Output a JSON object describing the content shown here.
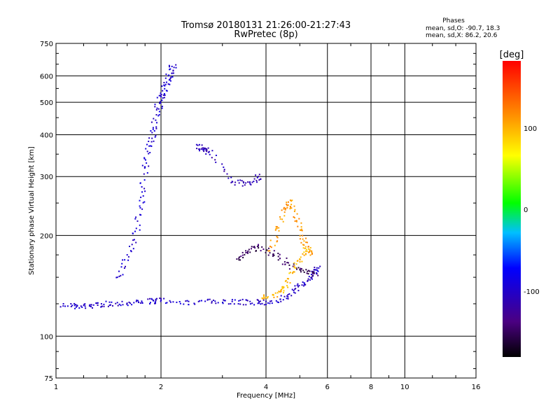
{
  "chart_data": {
    "type": "scatter",
    "title": "Tromsø 20180131 21:26:00-21:27:43",
    "subtitle": "RwPretec (8p)",
    "xlabel": "Frequency [MHz]",
    "ylabel": "Stationary phase Virtual Height [km]",
    "x_scale": "log",
    "y_scale": "log",
    "xlim": [
      1,
      16
    ],
    "ylim": [
      75,
      750
    ],
    "x_ticks": [
      "1",
      "2",
      "4",
      "6",
      "8",
      "10",
      "16"
    ],
    "y_ticks": [
      "75",
      "100",
      "200",
      "300",
      "400",
      "500",
      "600",
      "750"
    ],
    "grid": true,
    "stats_header": "Phases",
    "stats_line1": "mean, sd,O: -90.7, 18.3",
    "stats_line2": "mean, sd,X: 86.2, 20.6",
    "colorbar": {
      "label": "[deg]",
      "range": [
        -180,
        180
      ],
      "ticks": [
        "100",
        "0",
        "-100"
      ],
      "colors": [
        "#000000",
        "#4b0082",
        "#0000ff",
        "#00bfff",
        "#00ff00",
        "#ffff00",
        "#ff8c00",
        "#ff0000"
      ]
    },
    "series": [
      {
        "values": [
          [
            1.05,
            125
          ],
          [
            1.15,
            123
          ],
          [
            1.25,
            124
          ],
          [
            1.35,
            125
          ],
          [
            1.5,
            126
          ],
          [
            1.7,
            127
          ],
          [
            1.9,
            128
          ],
          [
            2.0,
            128
          ],
          [
            2.4,
            127
          ],
          [
            2.8,
            127
          ],
          [
            3.2,
            127
          ],
          [
            3.6,
            127
          ],
          [
            4.0,
            127
          ],
          [
            4.4,
            129
          ],
          [
            4.8,
            137
          ],
          [
            5.1,
            145
          ],
          [
            5.4,
            153
          ],
          [
            5.6,
            160
          ]
        ],
        "phase": -100
      },
      {
        "values": [
          [
            1.5,
            150
          ],
          [
            1.6,
            175
          ],
          [
            1.7,
            210
          ],
          [
            1.75,
            260
          ],
          [
            1.8,
            320
          ],
          [
            1.85,
            370
          ],
          [
            1.9,
            420
          ],
          [
            1.95,
            480
          ],
          [
            2.0,
            520
          ],
          [
            2.05,
            560
          ],
          [
            2.1,
            600
          ],
          [
            2.15,
            640
          ]
        ],
        "phase": -95
      },
      {
        "values": [
          [
            2.55,
            372
          ],
          [
            2.65,
            365
          ],
          [
            2.75,
            356
          ],
          [
            3.2,
            290
          ],
          [
            3.5,
            287
          ],
          [
            3.8,
            300
          ]
        ],
        "phase": -110
      },
      {
        "values": [
          [
            3.3,
            170
          ],
          [
            3.5,
            180
          ],
          [
            3.8,
            186
          ],
          [
            4.2,
            176
          ],
          [
            4.6,
            166
          ],
          [
            5.0,
            158
          ],
          [
            5.5,
            154
          ]
        ],
        "phase": -150
      },
      {
        "values": [
          [
            4.1,
            180
          ],
          [
            4.3,
            210
          ],
          [
            4.5,
            240
          ],
          [
            4.7,
            255
          ],
          [
            4.9,
            220
          ],
          [
            5.1,
            195
          ],
          [
            5.3,
            178
          ]
        ],
        "phase": 110
      },
      {
        "values": [
          [
            3.9,
            130
          ],
          [
            4.2,
            133
          ],
          [
            4.5,
            140
          ],
          [
            4.7,
            155
          ],
          [
            5.0,
            170
          ],
          [
            5.2,
            185
          ]
        ],
        "phase": 95
      }
    ]
  }
}
